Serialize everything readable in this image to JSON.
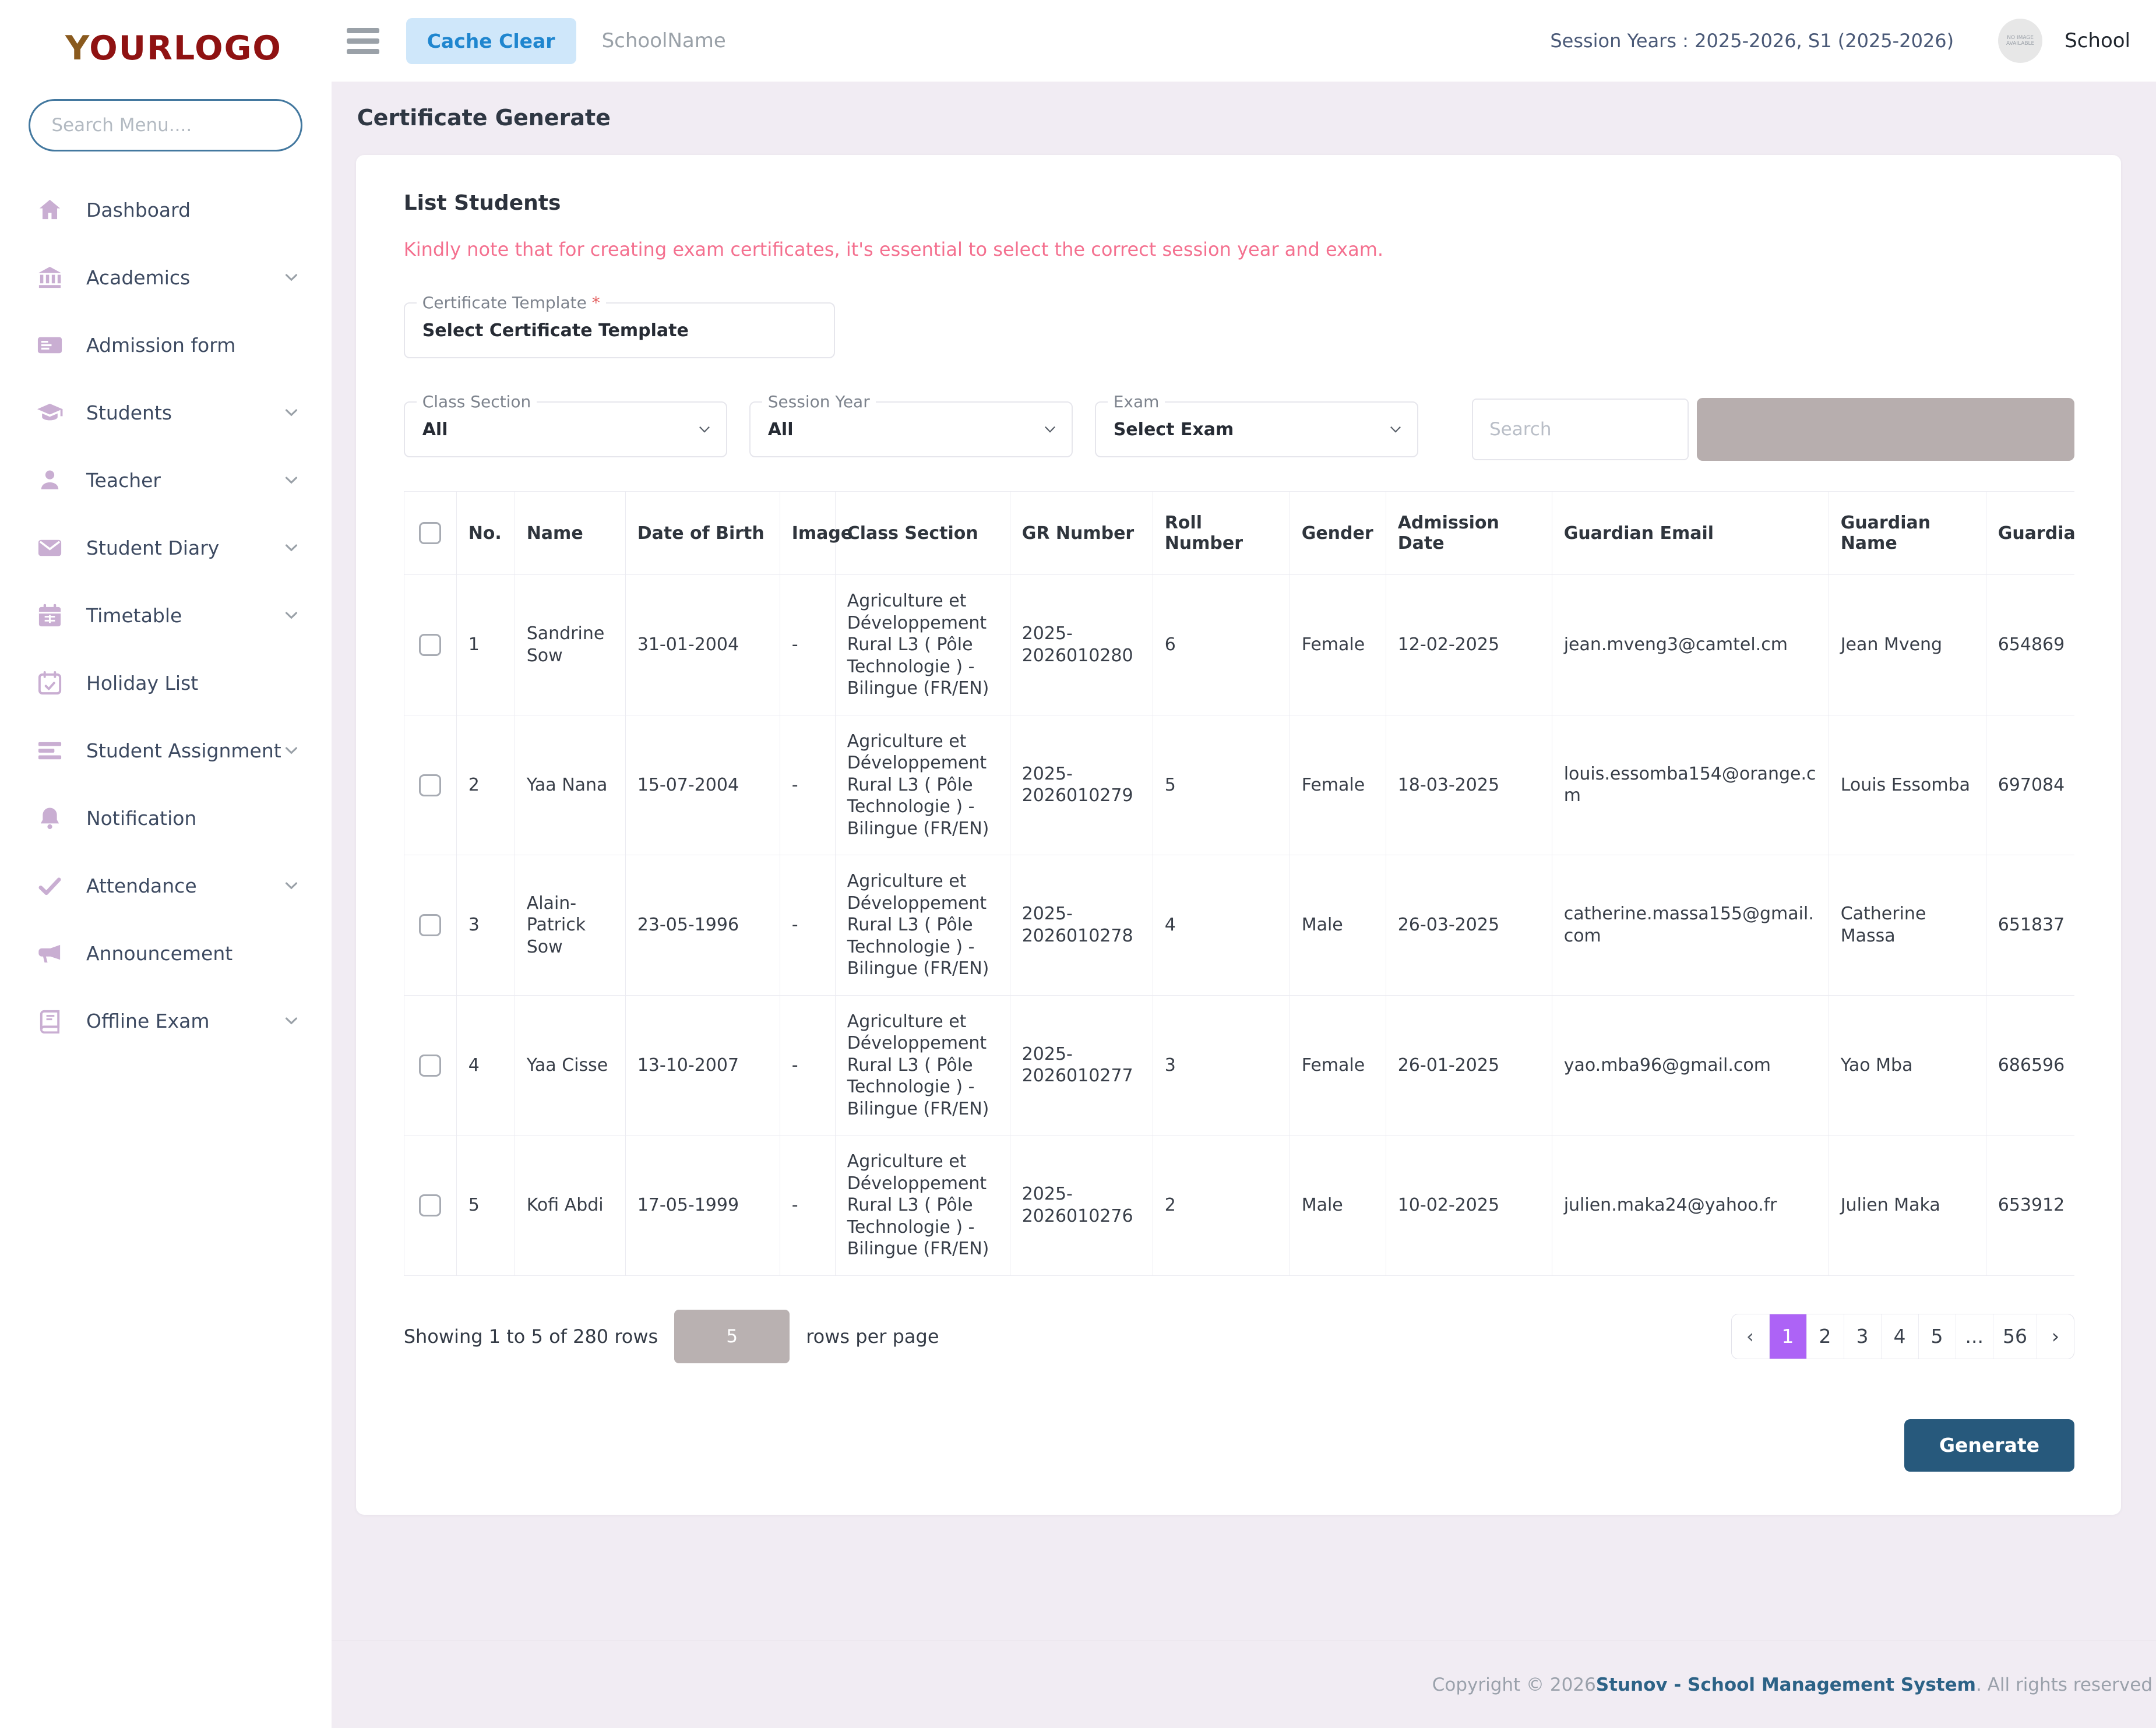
{
  "colors": {
    "accent_purple": "#ad63f6",
    "toolbar_gray": "#b7aeae",
    "generate_blue": "#27597c",
    "note_pink": "#f4708f",
    "cache_clear_bg": "#cfe7fa",
    "cache_clear_text": "#1f86cf",
    "sidebar_icon": "#c9aed2",
    "footer_link_blue": "#2c6286"
  },
  "sidebar": {
    "logo": {
      "first": "Y",
      "rest": "OURLOGO"
    },
    "search_placeholder": "Search Menu....",
    "items": [
      {
        "label": "Dashboard",
        "icon": "home-icon",
        "expandable": false
      },
      {
        "label": "Academics",
        "icon": "academics-icon",
        "expandable": true
      },
      {
        "label": "Admission form",
        "icon": "admission-form-icon",
        "expandable": false
      },
      {
        "label": "Students",
        "icon": "students-icon",
        "expandable": true
      },
      {
        "label": "Teacher",
        "icon": "teacher-icon",
        "expandable": true
      },
      {
        "label": "Student Diary",
        "icon": "student-diary-icon",
        "expandable": true
      },
      {
        "label": "Timetable",
        "icon": "timetable-icon",
        "expandable": true
      },
      {
        "label": "Holiday List",
        "icon": "holiday-list-icon",
        "expandable": false
      },
      {
        "label": "Student Assignment",
        "icon": "student-assignment-icon",
        "expandable": true
      },
      {
        "label": "Notification",
        "icon": "notification-icon",
        "expandable": false
      },
      {
        "label": "Attendance",
        "icon": "attendance-icon",
        "expandable": true
      },
      {
        "label": "Announcement",
        "icon": "announcement-icon",
        "expandable": false
      },
      {
        "label": "Offline Exam",
        "icon": "offline-exam-icon",
        "expandable": true
      }
    ]
  },
  "topbar": {
    "cache_clear_label": "Cache Clear",
    "school_name": "SchoolName",
    "session_text": "Session Years : 2025-2026, S1 (2025-2026)",
    "avatar_text": "NO IMAGE AVAILABLE",
    "profile_label": "School"
  },
  "page": {
    "title": "Certificate Generate"
  },
  "card": {
    "heading": "List Students",
    "note": "Kindly note that for creating exam certificates, it's essential to select the correct session year and exam.",
    "certificate_template": {
      "label": "Certificate Template",
      "required_mark": "*",
      "value": "Select Certificate Template"
    },
    "filters": [
      {
        "label": "Class Section",
        "value": "All"
      },
      {
        "label": "Session Year",
        "value": "All"
      },
      {
        "label": "Exam",
        "value": "Select Exam"
      }
    ],
    "search_placeholder": "Search",
    "toolbar_icons": [
      "refresh-icon",
      "columns-icon",
      "export-icon"
    ]
  },
  "table": {
    "headers": [
      "No.",
      "Name",
      "Date of Birth",
      "Image",
      "Class Section",
      "GR Number",
      "Roll Number",
      "Gender",
      "Admission Date",
      "Guardian Email",
      "Guardian Name",
      "Guardia"
    ],
    "rows": [
      {
        "no": "1",
        "name": "Sandrine Sow",
        "dob": "31-01-2004",
        "image": "-",
        "class_section": "Agriculture et Développement Rural L3 ( Pôle Technologie ) - Bilingue (FR/EN)",
        "gr_number": "2025-2026010280",
        "roll_number": "6",
        "gender": "Female",
        "admission_date": "12-02-2025",
        "guardian_email": "jean.mveng3@camtel.cm",
        "guardian_name": "Jean Mveng",
        "guardian_phone": "654869"
      },
      {
        "no": "2",
        "name": "Yaa Nana",
        "dob": "15-07-2004",
        "image": "-",
        "class_section": "Agriculture et Développement Rural L3 ( Pôle Technologie ) - Bilingue (FR/EN)",
        "gr_number": "2025-2026010279",
        "roll_number": "5",
        "gender": "Female",
        "admission_date": "18-03-2025",
        "guardian_email": "louis.essomba154@orange.cm",
        "guardian_name": "Louis Essomba",
        "guardian_phone": "697084"
      },
      {
        "no": "3",
        "name": "Alain-Patrick Sow",
        "dob": "23-05-1996",
        "image": "-",
        "class_section": "Agriculture et Développement Rural L3 ( Pôle Technologie ) - Bilingue (FR/EN)",
        "gr_number": "2025-2026010278",
        "roll_number": "4",
        "gender": "Male",
        "admission_date": "26-03-2025",
        "guardian_email": "catherine.massa155@gmail.com",
        "guardian_name": "Catherine Massa",
        "guardian_phone": "651837"
      },
      {
        "no": "4",
        "name": "Yaa Cisse",
        "dob": "13-10-2007",
        "image": "-",
        "class_section": "Agriculture et Développement Rural L3 ( Pôle Technologie ) - Bilingue (FR/EN)",
        "gr_number": "2025-2026010277",
        "roll_number": "3",
        "gender": "Female",
        "admission_date": "26-01-2025",
        "guardian_email": "yao.mba96@gmail.com",
        "guardian_name": "Yao Mba",
        "guardian_phone": "686596"
      },
      {
        "no": "5",
        "name": "Kofi Abdi",
        "dob": "17-05-1999",
        "image": "-",
        "class_section": "Agriculture et Développement Rural L3 ( Pôle Technologie ) - Bilingue (FR/EN)",
        "gr_number": "2025-2026010276",
        "roll_number": "2",
        "gender": "Male",
        "admission_date": "10-02-2025",
        "guardian_email": "julien.maka24@yahoo.fr",
        "guardian_name": "Julien Maka",
        "guardian_phone": "653912"
      }
    ]
  },
  "table_footer": {
    "showing_text": "Showing 1 to 5 of 280 rows",
    "per_page_value": "5",
    "per_page_suffix": "rows per page",
    "pagination": {
      "prev": "‹",
      "pages": [
        "1",
        "2",
        "3",
        "4",
        "5",
        "...",
        "56"
      ],
      "next": "›",
      "active_page": "1"
    }
  },
  "generate_label": "Generate",
  "footer": {
    "prefix": "Copyright © 2026 ",
    "link": "Stunov - School Management System",
    "suffix": ". All rights reserved"
  }
}
